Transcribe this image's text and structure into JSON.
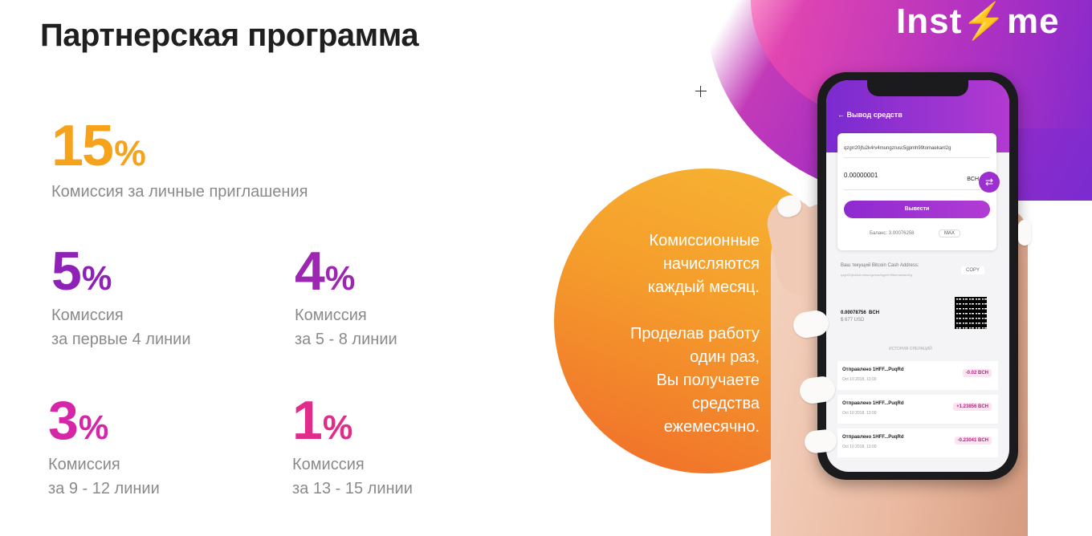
{
  "title": "Партнерская программа",
  "logo": {
    "text_before": "Inst",
    "bolt": "⚡",
    "text_after": "me"
  },
  "stats": [
    {
      "value": "15",
      "unit": "%",
      "desc1": "Комиссия за личные приглашения",
      "desc2": ""
    },
    {
      "value": "5",
      "unit": "%",
      "desc1": "Комиссия",
      "desc2": "за первые 4 линии"
    },
    {
      "value": "4",
      "unit": "%",
      "desc1": "Комиссия",
      "desc2": "за 5 - 8 линии"
    },
    {
      "value": "3",
      "unit": "%",
      "desc1": "Комиссия",
      "desc2": "за 9 - 12 линии"
    },
    {
      "value": "1",
      "unit": "%",
      "desc1": "Комиссия",
      "desc2": "за 13 - 15 линии"
    }
  ],
  "circle_text": {
    "p1": [
      "Комиссионные",
      "начисляются",
      "каждый месяц."
    ],
    "p2": [
      "Проделав работу",
      "один раз,",
      "Вы получаете",
      "средства",
      "ежемесячно."
    ]
  },
  "phone": {
    "screen_title": "← Вывод средств",
    "address_value": "qzgrr20jfu2k4rv4mungzrusc5gpmh99tomaekanl2g",
    "amount_value": "0.00000001",
    "currency": "BCH",
    "withdraw_label": "Вывести",
    "balance_label": "Баланс: 3.00076258",
    "max_label": "MAX",
    "address_label": "Ваш текущий Bitcoin Cash Address:",
    "address_text": "qzgrr20jfu2k4rv4mungzrusc5gpmh99tomaekanl2g",
    "copy_label": "COPY",
    "big_value": "0.00078756",
    "big_currency": "BCH",
    "usd_value": "$ 677 USD",
    "history_label": "ИСТОРИЯ ОПЕРАЦИЙ",
    "transactions": [
      {
        "title": "Отправлено 1HFF...PuqRd",
        "date": "Oct 10 2018, 13:00",
        "amount": "-0.02 BCH"
      },
      {
        "title": "Отправлено 1HFF...PuqRd",
        "date": "Oct 10 2018, 13:00",
        "amount": "+1.23856 BCH"
      },
      {
        "title": "Отправлено 1HFF...PuqRd",
        "date": "Oct 10 2018, 13:00",
        "amount": "-0.23041 BCH"
      }
    ]
  },
  "colors": {
    "orange": "#f6a31b",
    "purple": "#8e22b6",
    "pink": "#e02d8a"
  }
}
